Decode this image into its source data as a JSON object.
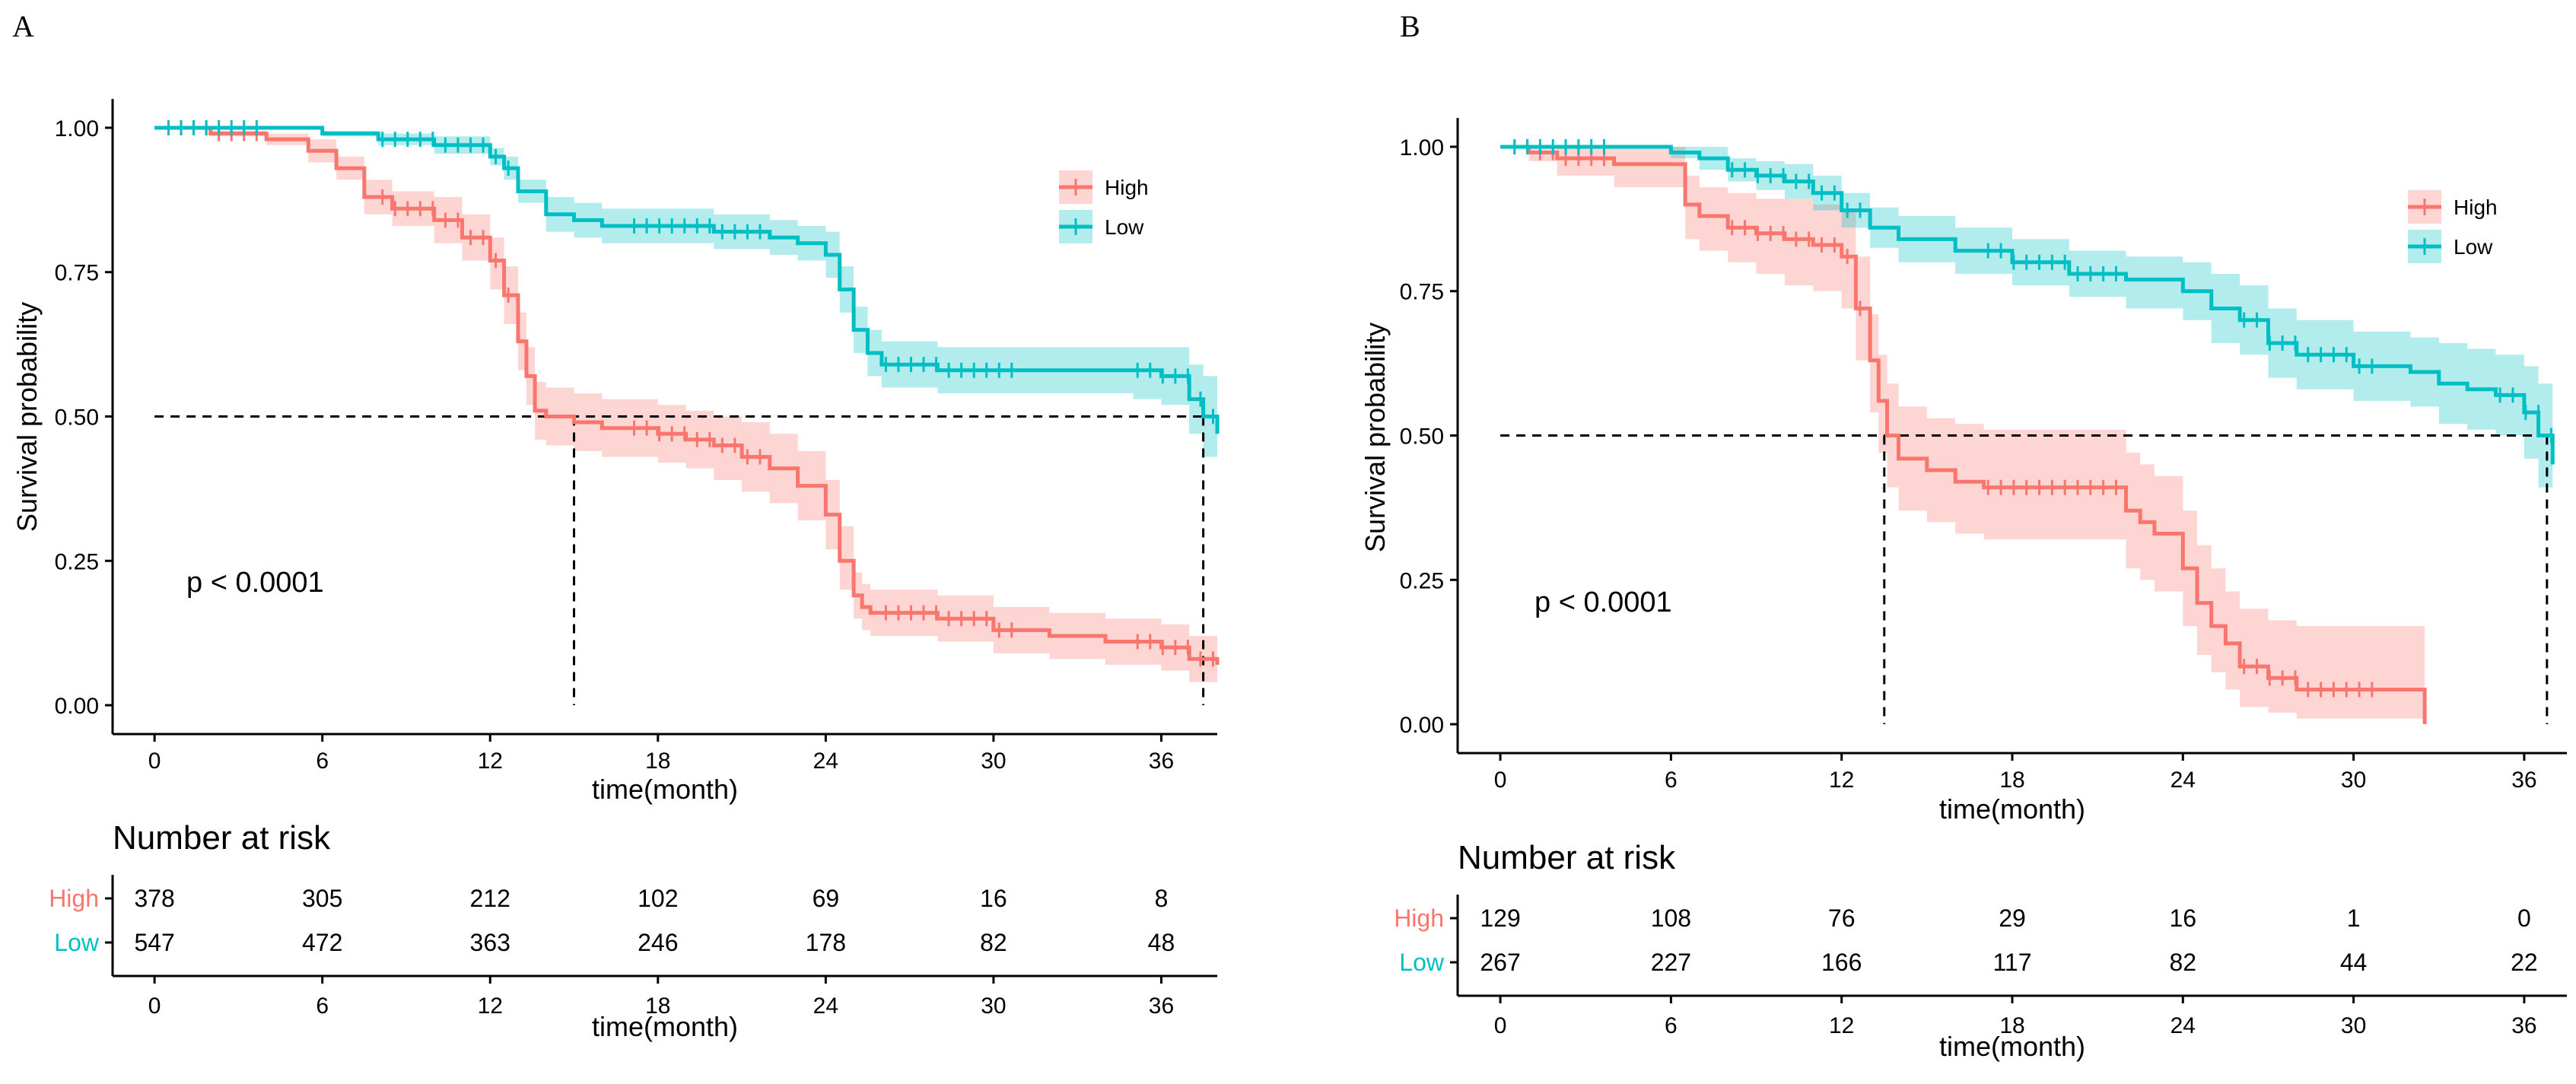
{
  "colors": {
    "high": "#F8766D",
    "low": "#00BFC4",
    "axis": "#000000",
    "background": "#FFFFFF"
  },
  "chart_data": [
    {
      "type": "line",
      "subtype": "kaplan-meier",
      "panel_label": "A",
      "xlabel": "time(month)",
      "ylabel": "Survival probability",
      "xlim": [
        -1.5,
        38
      ],
      "ylim": [
        -0.05,
        1.05
      ],
      "x_ticks": [
        0,
        6,
        12,
        18,
        24,
        30,
        36
      ],
      "y_ticks": [
        "0.00",
        "0.25",
        "0.50",
        "0.75",
        "1.00"
      ],
      "pvalue": "p < 0.0001",
      "legend": {
        "position": "top-right",
        "labels": [
          "High",
          "Low"
        ]
      },
      "median_line": {
        "y": 0.5,
        "x_high": 15,
        "x_low": 37.5
      },
      "series": [
        {
          "name": "High",
          "color_key": "high",
          "x": [
            0,
            2,
            4,
            5.5,
            6.5,
            7.5,
            8.5,
            10,
            11,
            12,
            12.5,
            13,
            13.3,
            13.6,
            14,
            15,
            16,
            18,
            19,
            20,
            21,
            22,
            23,
            24,
            24.5,
            25,
            25.3,
            25.6,
            26,
            28,
            30,
            32,
            34,
            36,
            37,
            38
          ],
          "y": [
            1.0,
            0.99,
            0.98,
            0.96,
            0.93,
            0.88,
            0.86,
            0.84,
            0.81,
            0.77,
            0.71,
            0.63,
            0.57,
            0.51,
            0.5,
            0.49,
            0.48,
            0.47,
            0.46,
            0.45,
            0.43,
            0.41,
            0.38,
            0.33,
            0.25,
            0.19,
            0.17,
            0.16,
            0.16,
            0.15,
            0.13,
            0.12,
            0.11,
            0.1,
            0.08,
            0.07
          ],
          "lower": [
            1.0,
            0.985,
            0.97,
            0.94,
            0.91,
            0.85,
            0.83,
            0.8,
            0.77,
            0.72,
            0.66,
            0.58,
            0.52,
            0.46,
            0.45,
            0.44,
            0.43,
            0.42,
            0.41,
            0.39,
            0.37,
            0.35,
            0.32,
            0.27,
            0.2,
            0.15,
            0.13,
            0.12,
            0.12,
            0.11,
            0.09,
            0.08,
            0.07,
            0.06,
            0.04,
            0.03
          ],
          "upper": [
            1.0,
            0.995,
            0.99,
            0.98,
            0.95,
            0.91,
            0.89,
            0.88,
            0.85,
            0.81,
            0.76,
            0.68,
            0.62,
            0.56,
            0.55,
            0.54,
            0.53,
            0.52,
            0.51,
            0.5,
            0.49,
            0.47,
            0.44,
            0.39,
            0.31,
            0.23,
            0.21,
            0.2,
            0.2,
            0.19,
            0.17,
            0.16,
            0.15,
            0.14,
            0.12,
            0.11
          ]
        },
        {
          "name": "Low",
          "color_key": "low",
          "x": [
            0,
            3,
            6,
            8,
            10,
            12,
            12.5,
            13,
            14,
            15,
            16,
            18,
            20,
            22,
            23,
            24,
            24.5,
            25,
            25.5,
            26,
            28,
            30,
            32,
            35,
            36,
            37,
            37.5,
            38
          ],
          "y": [
            1.0,
            1.0,
            0.99,
            0.98,
            0.97,
            0.95,
            0.93,
            0.89,
            0.85,
            0.84,
            0.83,
            0.83,
            0.82,
            0.81,
            0.8,
            0.78,
            0.72,
            0.65,
            0.61,
            0.59,
            0.58,
            0.58,
            0.58,
            0.58,
            0.57,
            0.53,
            0.5,
            0.47
          ],
          "lower": [
            1.0,
            1.0,
            0.985,
            0.97,
            0.955,
            0.935,
            0.91,
            0.87,
            0.82,
            0.81,
            0.8,
            0.8,
            0.79,
            0.78,
            0.77,
            0.74,
            0.68,
            0.61,
            0.57,
            0.55,
            0.54,
            0.54,
            0.54,
            0.53,
            0.52,
            0.47,
            0.43,
            0.39
          ],
          "upper": [
            1.0,
            1.0,
            0.995,
            0.99,
            0.985,
            0.965,
            0.95,
            0.91,
            0.88,
            0.87,
            0.86,
            0.86,
            0.85,
            0.84,
            0.83,
            0.82,
            0.76,
            0.69,
            0.65,
            0.63,
            0.62,
            0.62,
            0.62,
            0.62,
            0.62,
            0.59,
            0.57,
            0.55
          ]
        }
      ],
      "risk_table": {
        "title": "Number at risk",
        "xlabel": "time(month)",
        "rows": [
          {
            "name": "High",
            "color_key": "high",
            "values": [
              378,
              305,
              212,
              102,
              69,
              16,
              8
            ]
          },
          {
            "name": "Low",
            "color_key": "low",
            "values": [
              547,
              472,
              363,
              246,
              178,
              82,
              48
            ]
          }
        ]
      }
    },
    {
      "type": "line",
      "subtype": "kaplan-meier",
      "panel_label": "B",
      "xlabel": "time(month)",
      "ylabel": "Survival probability",
      "xlim": [
        -1.5,
        37.5
      ],
      "ylim": [
        -0.05,
        1.05
      ],
      "x_ticks": [
        0,
        6,
        12,
        18,
        24,
        30,
        36
      ],
      "y_ticks": [
        "0.00",
        "0.25",
        "0.50",
        "0.75",
        "1.00"
      ],
      "pvalue": "p < 0.0001",
      "legend": {
        "position": "top-right",
        "labels": [
          "High",
          "Low"
        ]
      },
      "median_line": {
        "y": 0.5,
        "x_high": 13.5,
        "x_low": 36.8
      },
      "series": [
        {
          "name": "High",
          "color_key": "high",
          "x": [
            0,
            1,
            2,
            4,
            6,
            6.5,
            7,
            8,
            9,
            10,
            11,
            12,
            12.5,
            13,
            13.3,
            13.6,
            14,
            15,
            16,
            17,
            18,
            20,
            21,
            22,
            22.5,
            23,
            24,
            24.5,
            25,
            25.5,
            26,
            27,
            28,
            30,
            31,
            32.5
          ],
          "y": [
            1.0,
            0.99,
            0.98,
            0.97,
            0.97,
            0.9,
            0.88,
            0.86,
            0.85,
            0.84,
            0.83,
            0.81,
            0.72,
            0.63,
            0.56,
            0.5,
            0.46,
            0.44,
            0.42,
            0.41,
            0.41,
            0.41,
            0.41,
            0.37,
            0.35,
            0.33,
            0.27,
            0.21,
            0.17,
            0.14,
            0.1,
            0.08,
            0.06,
            0.06,
            0.06,
            0.0
          ],
          "lower": [
            1.0,
            0.975,
            0.95,
            0.93,
            0.93,
            0.84,
            0.82,
            0.8,
            0.78,
            0.76,
            0.75,
            0.72,
            0.63,
            0.54,
            0.47,
            0.41,
            0.37,
            0.35,
            0.33,
            0.32,
            0.32,
            0.32,
            0.32,
            0.27,
            0.25,
            0.23,
            0.17,
            0.12,
            0.09,
            0.06,
            0.03,
            0.02,
            0.01,
            0.01,
            0.01,
            0.0
          ],
          "upper": [
            1.0,
            1.0,
            1.0,
            1.0,
            1.0,
            0.95,
            0.93,
            0.92,
            0.91,
            0.91,
            0.9,
            0.89,
            0.81,
            0.71,
            0.64,
            0.59,
            0.55,
            0.53,
            0.52,
            0.51,
            0.51,
            0.51,
            0.51,
            0.47,
            0.45,
            0.43,
            0.37,
            0.31,
            0.27,
            0.23,
            0.2,
            0.18,
            0.17,
            0.17,
            0.17,
            0.17
          ]
        },
        {
          "name": "Low",
          "color_key": "low",
          "x": [
            0,
            4,
            6,
            7,
            8,
            9,
            10,
            11,
            12,
            13,
            14,
            16,
            18,
            20,
            22,
            24,
            25,
            26,
            27,
            28,
            30,
            32,
            33,
            34,
            35,
            36,
            36.5,
            37
          ],
          "y": [
            1.0,
            1.0,
            0.99,
            0.98,
            0.96,
            0.95,
            0.94,
            0.92,
            0.89,
            0.86,
            0.84,
            0.82,
            0.8,
            0.78,
            0.77,
            0.75,
            0.72,
            0.7,
            0.66,
            0.64,
            0.62,
            0.61,
            0.59,
            0.58,
            0.57,
            0.54,
            0.5,
            0.45
          ],
          "lower": [
            1.0,
            1.0,
            0.98,
            0.96,
            0.94,
            0.925,
            0.91,
            0.89,
            0.86,
            0.825,
            0.8,
            0.78,
            0.76,
            0.74,
            0.72,
            0.7,
            0.66,
            0.64,
            0.6,
            0.58,
            0.56,
            0.55,
            0.52,
            0.51,
            0.5,
            0.46,
            0.41,
            0.34
          ],
          "upper": [
            1.0,
            1.0,
            1.0,
            1.0,
            0.98,
            0.975,
            0.97,
            0.95,
            0.92,
            0.895,
            0.88,
            0.86,
            0.84,
            0.82,
            0.81,
            0.8,
            0.78,
            0.76,
            0.72,
            0.7,
            0.68,
            0.67,
            0.66,
            0.65,
            0.64,
            0.62,
            0.59,
            0.56
          ]
        }
      ],
      "risk_table": {
        "title": "Number at risk",
        "xlabel": "time(month)",
        "rows": [
          {
            "name": "High",
            "color_key": "high",
            "values": [
              129,
              108,
              76,
              29,
              16,
              1,
              0
            ]
          },
          {
            "name": "Low",
            "color_key": "low",
            "values": [
              267,
              227,
              166,
              117,
              82,
              44,
              22
            ]
          }
        ]
      }
    }
  ]
}
